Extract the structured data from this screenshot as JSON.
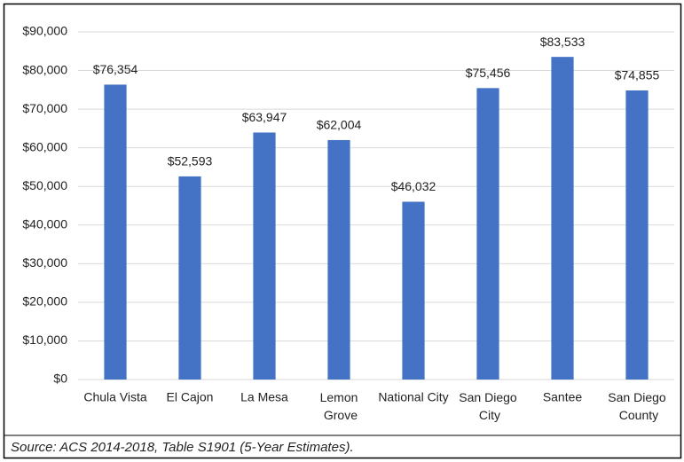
{
  "chart_data": {
    "type": "bar",
    "categories": [
      "Chula Vista",
      "El Cajon",
      "La Mesa",
      "Lemon Grove",
      "National City",
      "San Diego City",
      "Santee",
      "San Diego County"
    ],
    "values": [
      76354,
      52593,
      63947,
      62004,
      46032,
      75456,
      83533,
      74855
    ],
    "value_labels": [
      "$76,354",
      "$52,593",
      "$63,947",
      "$62,004",
      "$46,032",
      "$75,456",
      "$83,533",
      "$74,855"
    ],
    "color": "#4472c4",
    "ylim": [
      0,
      90000
    ],
    "yticks": [
      {
        "value": 0,
        "label": "$0"
      },
      {
        "value": 10000,
        "label": "$10,000"
      },
      {
        "value": 20000,
        "label": "$20,000"
      },
      {
        "value": 30000,
        "label": "$30,000"
      },
      {
        "value": 40000,
        "label": "$40,000"
      },
      {
        "value": 50000,
        "label": "$50,000"
      },
      {
        "value": 60000,
        "label": "$60,000"
      },
      {
        "value": 70000,
        "label": "$70,000"
      },
      {
        "value": 80000,
        "label": "$80,000"
      },
      {
        "value": 90000,
        "label": "$90,000"
      }
    ],
    "grid": true,
    "caption": "Source: ACS 2014-2018, Table S1901 (5-Year Estimates)."
  }
}
